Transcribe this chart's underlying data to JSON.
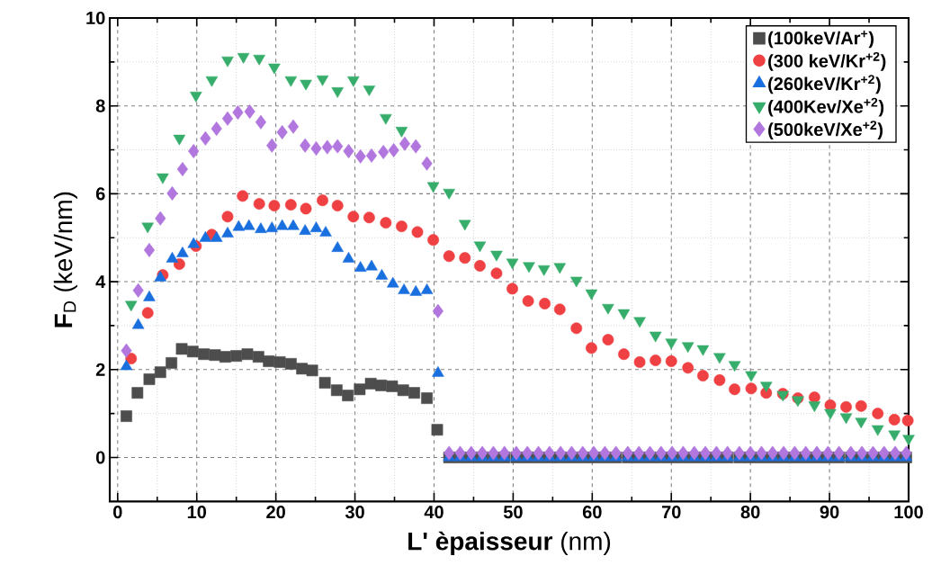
{
  "chart_data": {
    "type": "scatter",
    "xlabel": "**L' èpaisseur** (nm)",
    "ylabel": "**F**$_{D}$ (keV/nm)",
    "xlim": [
      -1,
      100
    ],
    "ylim": [
      -1,
      10
    ],
    "xticks": [
      0,
      10,
      20,
      30,
      40,
      50,
      60,
      70,
      80,
      90,
      100
    ],
    "yticks": [
      0,
      2,
      4,
      6,
      8,
      10
    ],
    "grid": true,
    "legend": "top right",
    "series": [
      {
        "name": "(100keV/Ar$^{+}$)",
        "color": "#4d4d4d",
        "marker": "square",
        "x": [
          1.1,
          2.5,
          4.0,
          5.4,
          6.8,
          8.1,
          9.5,
          10.9,
          12.3,
          13.6,
          15.0,
          16.4,
          17.8,
          19.1,
          20.5,
          21.9,
          23.3,
          24.6,
          26.2,
          27.7,
          29.1,
          30.6,
          32.0,
          33.3,
          34.7,
          36.1,
          37.5,
          39.1,
          40.4,
          41.9,
          43.3,
          44.7,
          46.1,
          47.5,
          48.9,
          50.4,
          51.8,
          53.2,
          54.6,
          56.0,
          57.4,
          58.8,
          60.2,
          61.6,
          63.0,
          64.5,
          65.9,
          67.3,
          68.7,
          70.1,
          71.5,
          72.9,
          74.3,
          75.7,
          77.1,
          78.6,
          80.0,
          81.4,
          82.8,
          84.2,
          85.6,
          87.0,
          88.4,
          89.8,
          91.2,
          92.7,
          94.1,
          95.5,
          96.9,
          98.3,
          99.7
        ],
        "values": [
          0.94,
          1.47,
          1.78,
          1.94,
          2.15,
          2.47,
          2.41,
          2.35,
          2.33,
          2.29,
          2.31,
          2.35,
          2.29,
          2.19,
          2.17,
          2.13,
          2.02,
          1.98,
          1.7,
          1.53,
          1.41,
          1.55,
          1.68,
          1.64,
          1.62,
          1.53,
          1.47,
          1.35,
          0.63,
          0,
          0,
          0,
          0,
          0,
          0,
          0,
          0,
          0,
          0,
          0,
          0,
          0,
          0,
          0,
          0,
          0,
          0,
          0,
          0,
          0,
          0,
          0,
          0,
          0,
          0,
          0,
          0,
          0,
          0,
          0,
          0,
          0,
          0,
          0,
          0,
          0,
          0,
          0,
          0,
          0,
          0
        ]
      },
      {
        "name": "(300 keV/Kr$^{+2}$)",
        "color": "#ef4143",
        "marker": "circle",
        "x": [
          1.7,
          3.8,
          5.7,
          7.8,
          9.9,
          11.9,
          13.9,
          15.8,
          17.9,
          19.8,
          21.9,
          23.8,
          25.9,
          27.8,
          29.8,
          31.8,
          33.9,
          35.9,
          37.9,
          39.9,
          41.9,
          43.9,
          45.8,
          47.9,
          49.9,
          51.9,
          54.0,
          55.9,
          58.0,
          59.9,
          62.0,
          64.0,
          66.0,
          68.0,
          70.0,
          72.1,
          74.0,
          76.1,
          78.0,
          80.1,
          82.0,
          84.1,
          86.0,
          88.1,
          90.1,
          92.1,
          94.0,
          96.1,
          98.2,
          99.9
        ],
        "values": [
          2.25,
          3.29,
          4.15,
          4.4,
          4.81,
          5.07,
          5.48,
          5.95,
          5.77,
          5.73,
          5.75,
          5.66,
          5.85,
          5.73,
          5.48,
          5.46,
          5.34,
          5.26,
          5.13,
          4.95,
          4.58,
          4.54,
          4.36,
          4.19,
          3.84,
          3.56,
          3.5,
          3.37,
          2.94,
          2.49,
          2.68,
          2.35,
          2.17,
          2.21,
          2.19,
          2.04,
          1.86,
          1.76,
          1.55,
          1.57,
          1.47,
          1.45,
          1.35,
          1.37,
          1.19,
          1.15,
          1.17,
          1.0,
          0.86,
          0.84
        ]
      },
      {
        "name": "(260keV/Kr$^{+2}$)",
        "color": "#1a6fdf",
        "marker": "triangle",
        "x": [
          1.1,
          2.6,
          4.0,
          5.4,
          6.9,
          8.2,
          9.6,
          11.1,
          12.5,
          13.9,
          15.3,
          16.6,
          18.1,
          19.5,
          20.8,
          22.2,
          23.7,
          25.1,
          26.3,
          27.8,
          29.2,
          30.7,
          32.1,
          33.4,
          34.8,
          36.2,
          37.7,
          39.1,
          40.5,
          41.9,
          43.3,
          44.7,
          46.1,
          47.5,
          48.9,
          50.4,
          51.8,
          53.2,
          54.6,
          56.0,
          57.4,
          58.8,
          60.2,
          61.6,
          63.0,
          64.5,
          65.9,
          67.3,
          68.7,
          70.1,
          71.5,
          72.9,
          74.3,
          75.7,
          77.1,
          78.6,
          80.0,
          81.4,
          82.8,
          84.2,
          85.6,
          87.0,
          88.4,
          89.8,
          91.2,
          92.7,
          94.1,
          95.5,
          96.9,
          98.3,
          99.7
        ],
        "values": [
          2.07,
          3.01,
          3.64,
          4.09,
          4.52,
          4.64,
          4.85,
          4.99,
          4.99,
          5.09,
          5.24,
          5.26,
          5.19,
          5.21,
          5.26,
          5.26,
          5.15,
          5.21,
          5.11,
          4.76,
          4.52,
          4.31,
          4.34,
          4.13,
          3.95,
          3.8,
          3.76,
          3.8,
          1.92,
          0,
          0,
          0,
          0,
          0,
          0,
          0,
          0,
          0,
          0,
          0,
          0,
          0,
          0,
          0,
          0,
          0,
          0,
          0,
          0,
          0,
          0,
          0,
          0,
          0,
          0,
          0,
          0,
          0,
          0,
          0,
          0,
          0,
          0,
          0,
          0,
          0,
          0,
          0,
          0,
          0,
          0
        ]
      },
      {
        "name": "(400Kev/Xe$^{+2}$)",
        "color": "#37ad6b",
        "marker": "triangle_down",
        "x": [
          1.7,
          3.8,
          5.7,
          7.8,
          9.9,
          11.9,
          13.9,
          15.9,
          17.9,
          19.8,
          21.9,
          23.8,
          25.9,
          27.8,
          29.8,
          31.8,
          33.9,
          35.9,
          39.9,
          41.9,
          43.9,
          45.8,
          47.9,
          49.9,
          52.0,
          53.9,
          55.9,
          58.0,
          59.9,
          62.0,
          64.0,
          66.0,
          68.0,
          70.0,
          72.1,
          74.0,
          76.1,
          78.0,
          80.1,
          82.0,
          84.1,
          86.0,
          88.1,
          90.1,
          92.1,
          94.0,
          96.1,
          98.2,
          100.0
        ],
        "values": [
          3.48,
          5.26,
          6.38,
          7.26,
          8.24,
          8.59,
          9.04,
          9.12,
          9.08,
          8.88,
          8.59,
          8.51,
          8.61,
          8.34,
          8.59,
          8.38,
          7.73,
          7.44,
          6.18,
          6.03,
          5.32,
          4.83,
          4.62,
          4.44,
          4.36,
          4.29,
          4.34,
          4.03,
          3.74,
          3.41,
          3.29,
          3.11,
          2.78,
          2.62,
          2.54,
          2.47,
          2.29,
          2.11,
          1.88,
          1.64,
          1.43,
          1.31,
          1.19,
          1.02,
          0.92,
          0.82,
          0.65,
          0.53,
          0.43
        ]
      },
      {
        "name": "(500keV/Xe$^{+2}$)",
        "color": "#b177de",
        "marker": "diamond",
        "x": [
          1.1,
          2.6,
          4.0,
          5.4,
          6.9,
          8.2,
          9.6,
          11.1,
          12.5,
          13.9,
          15.2,
          16.7,
          18.1,
          19.5,
          20.8,
          22.2,
          23.7,
          25.1,
          26.5,
          27.8,
          29.2,
          30.7,
          32.1,
          33.6,
          34.9,
          36.3,
          37.7,
          39.1,
          40.5,
          41.9,
          43.3,
          44.7,
          46.1,
          47.5,
          48.9,
          50.4,
          51.8,
          53.2,
          54.6,
          56.0,
          57.4,
          58.8,
          60.2,
          61.6,
          63.0,
          64.5,
          65.9,
          67.3,
          68.7,
          70.1,
          71.5,
          72.9,
          74.3,
          75.7,
          77.1,
          78.6,
          80.0,
          81.4,
          82.8,
          84.2,
          85.6,
          87.0,
          88.4,
          89.8,
          91.2,
          92.7,
          94.1,
          95.5,
          96.9,
          98.3,
          99.7
        ],
        "values": [
          2.43,
          3.8,
          4.72,
          5.44,
          6.01,
          6.56,
          6.97,
          7.26,
          7.48,
          7.71,
          7.85,
          7.87,
          7.63,
          7.1,
          7.4,
          7.53,
          7.1,
          7.03,
          7.06,
          7.08,
          6.97,
          6.85,
          6.87,
          6.95,
          6.99,
          7.14,
          7.08,
          6.69,
          3.33,
          0.1,
          0.1,
          0.1,
          0.1,
          0.1,
          0.1,
          0.1,
          0.1,
          0.1,
          0.1,
          0.1,
          0.1,
          0.1,
          0.1,
          0.1,
          0.1,
          0.1,
          0.1,
          0.1,
          0.1,
          0.1,
          0.1,
          0.1,
          0.1,
          0.1,
          0.1,
          0.1,
          0.1,
          0.1,
          0.1,
          0.1,
          0.1,
          0.1,
          0.1,
          0.1,
          0.1,
          0.1,
          0.1,
          0.1,
          0.1,
          0.1,
          0.1
        ]
      }
    ]
  }
}
